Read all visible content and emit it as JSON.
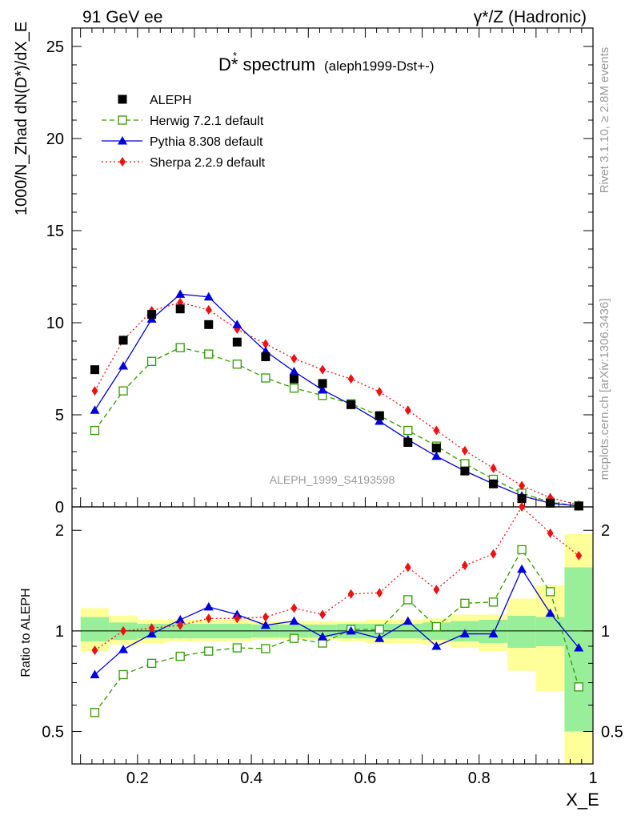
{
  "header": {
    "left": "91 GeV ee",
    "right": "γ*/Z (Hadronic)"
  },
  "chart_data": {
    "type": "scatter",
    "title": "D* spectrum",
    "subtitle": "(aleph1999-Dst+-)",
    "xlabel": "X_E",
    "ylabel": "1000/N_Zhad dN(D*)/dX_E",
    "ratio_ylabel": "Ratio to ALEPH",
    "watermark": "ALEPH_1999_S4193598",
    "side_label_top": "Rivet 3.1.10, ≥ 2.8M events",
    "side_label_bottom": "mcplots.cern.ch [arXiv:1306.3436]",
    "xlim": [
      0.085,
      1.0
    ],
    "ylim": [
      0,
      26
    ],
    "ratio_ylim": [
      0.4,
      2.35
    ],
    "x_ticks": [
      "0.2",
      "0.4",
      "0.6",
      "0.8",
      "1"
    ],
    "y_ticks": [
      "0",
      "5",
      "10",
      "15",
      "20",
      "25"
    ],
    "ratio_ticks": [
      "0.5",
      "1",
      "2"
    ],
    "x": [
      0.125,
      0.175,
      0.225,
      0.275,
      0.325,
      0.375,
      0.425,
      0.475,
      0.525,
      0.575,
      0.625,
      0.675,
      0.725,
      0.775,
      0.825,
      0.875,
      0.925,
      0.975
    ],
    "series": [
      {
        "name": "ALEPH",
        "color": "#000000",
        "marker": "square",
        "values": [
          7.45,
          9.05,
          10.45,
          10.75,
          9.9,
          8.95,
          8.15,
          6.95,
          6.7,
          5.55,
          4.95,
          3.5,
          3.2,
          1.95,
          1.25,
          0.45,
          0.2,
          0.05
        ]
      },
      {
        "name": "Herwig 7.2.1 default",
        "color": "#339900",
        "marker": "open-square",
        "dash": "6,4",
        "values": [
          4.15,
          6.3,
          7.9,
          8.65,
          8.3,
          7.75,
          7.0,
          6.45,
          6.05,
          5.6,
          4.95,
          4.15,
          3.3,
          2.35,
          1.5,
          0.75,
          0.25,
          0.05
        ]
      },
      {
        "name": "Pythia 8.308 default",
        "color": "#0000dd",
        "marker": "triangle",
        "values": [
          5.25,
          7.65,
          10.2,
          11.55,
          11.4,
          9.9,
          8.45,
          7.35,
          6.35,
          5.55,
          4.65,
          3.65,
          2.75,
          1.95,
          1.25,
          0.6,
          0.2,
          0.05
        ]
      },
      {
        "name": "Sherpa 2.2.9 default",
        "color": "#ee1111",
        "marker": "diamond",
        "dash": "2,3",
        "values": [
          6.3,
          9.05,
          10.65,
          11.1,
          10.7,
          9.65,
          8.85,
          8.05,
          7.45,
          6.95,
          6.25,
          5.25,
          4.15,
          3.05,
          2.1,
          1.15,
          0.5,
          0.1
        ]
      }
    ],
    "ratio_series": [
      {
        "name": "Herwig 7.2.1 default",
        "values": [
          0.57,
          0.74,
          0.8,
          0.84,
          0.87,
          0.89,
          0.885,
          0.95,
          0.92,
          1.01,
          1.01,
          1.24,
          1.03,
          1.21,
          1.22,
          1.75,
          1.31,
          0.68
        ]
      },
      {
        "name": "Pythia 8.308 default",
        "values": [
          0.74,
          0.88,
          0.98,
          1.08,
          1.18,
          1.12,
          1.04,
          1.07,
          0.96,
          1.0,
          0.95,
          1.07,
          0.9,
          0.98,
          0.98,
          1.53,
          1.13,
          0.89
        ]
      },
      {
        "name": "Sherpa 2.2.9 default",
        "values": [
          0.875,
          1.0,
          1.02,
          1.04,
          1.09,
          1.09,
          1.1,
          1.17,
          1.12,
          1.29,
          1.3,
          1.55,
          1.33,
          1.57,
          1.7,
          2.35,
          1.96,
          1.68
        ]
      }
    ],
    "ratio_bands": {
      "green": [
        [
          0.93,
          1.1
        ],
        [
          0.94,
          1.06
        ],
        [
          0.95,
          1.05
        ],
        [
          0.95,
          1.05
        ],
        [
          0.95,
          1.05
        ],
        [
          0.95,
          1.05
        ],
        [
          0.955,
          1.045
        ],
        [
          0.955,
          1.045
        ],
        [
          0.955,
          1.045
        ],
        [
          0.95,
          1.05
        ],
        [
          0.95,
          1.05
        ],
        [
          0.95,
          1.05
        ],
        [
          0.94,
          1.06
        ],
        [
          0.93,
          1.07
        ],
        [
          0.92,
          1.08
        ],
        [
          0.89,
          1.11
        ],
        [
          0.9,
          1.1
        ],
        [
          0.5,
          1.55
        ]
      ],
      "yellow": [
        [
          0.87,
          1.17
        ],
        [
          0.91,
          1.11
        ],
        [
          0.92,
          1.08
        ],
        [
          0.93,
          1.08
        ],
        [
          0.93,
          1.08
        ],
        [
          0.93,
          1.08
        ],
        [
          0.94,
          1.07
        ],
        [
          0.94,
          1.07
        ],
        [
          0.94,
          1.07
        ],
        [
          0.93,
          1.07
        ],
        [
          0.92,
          1.08
        ],
        [
          0.92,
          1.08
        ],
        [
          0.91,
          1.09
        ],
        [
          0.89,
          1.12
        ],
        [
          0.87,
          1.12
        ],
        [
          0.76,
          1.25
        ],
        [
          0.66,
          1.37
        ],
        [
          0.3,
          1.95
        ]
      ]
    }
  }
}
